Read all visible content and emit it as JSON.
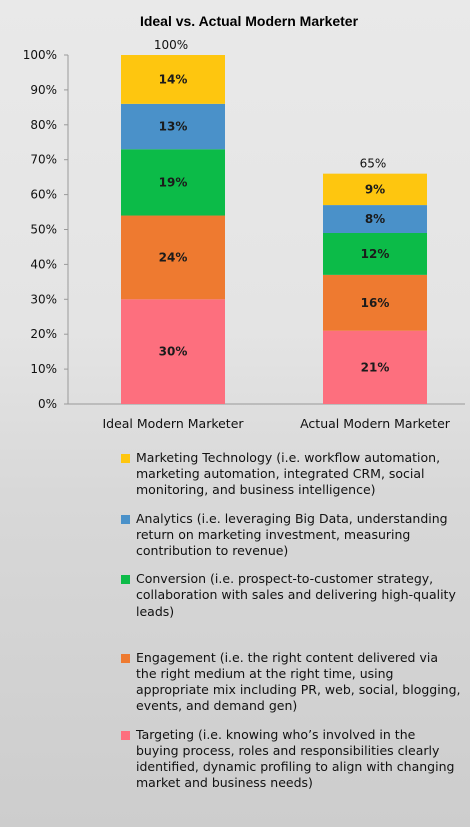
{
  "chart_data": {
    "type": "bar",
    "stacked": true,
    "title": "Ideal vs. Actual Modern Marketer",
    "categories": [
      "Ideal Modern Marketer",
      "Actual Modern Marketer"
    ],
    "totals": [
      "100%",
      "65%"
    ],
    "ylim": [
      0,
      100
    ],
    "y_ticks": [
      "0%",
      "10%",
      "20%",
      "30%",
      "40%",
      "50%",
      "60%",
      "70%",
      "80%",
      "90%",
      "100%"
    ],
    "grid": false,
    "legend_position": "bottom",
    "series": [
      {
        "name": "Targeting (i.e. knowing who’s involved in the buying process, roles and responsibilities clearly identified, dynamic profiling to align with changing market and business needs)",
        "values": [
          30,
          21
        ],
        "labels": [
          "30%",
          "21%"
        ],
        "color": "#fd6f7e"
      },
      {
        "name": "Engagement (i.e. the right content delivered via the right medium at the right time, using appropriate mix including PR, web, social, blogging, events, and demand gen)",
        "values": [
          24,
          16
        ],
        "labels": [
          "24%",
          "16%"
        ],
        "color": "#ee7a30"
      },
      {
        "name": "Conversion (i.e. prospect-to-customer strategy, collaboration with sales and delivering high-quality leads)",
        "values": [
          19,
          12
        ],
        "labels": [
          "19%",
          "12%"
        ],
        "color": "#0cbb48"
      },
      {
        "name": "Analytics (i.e. leveraging Big Data, understanding return on marketing investment, measuring contribution to revenue)",
        "values": [
          13,
          8
        ],
        "labels": [
          "13%",
          "8%"
        ],
        "color": "#4a91c9"
      },
      {
        "name": "Marketing Technology (i.e. workflow automation, marketing automation, integrated CRM, social monitoring, and business intelligence)",
        "values": [
          14,
          9
        ],
        "labels": [
          "14%",
          "9%"
        ],
        "color": "#fec60f"
      }
    ]
  }
}
